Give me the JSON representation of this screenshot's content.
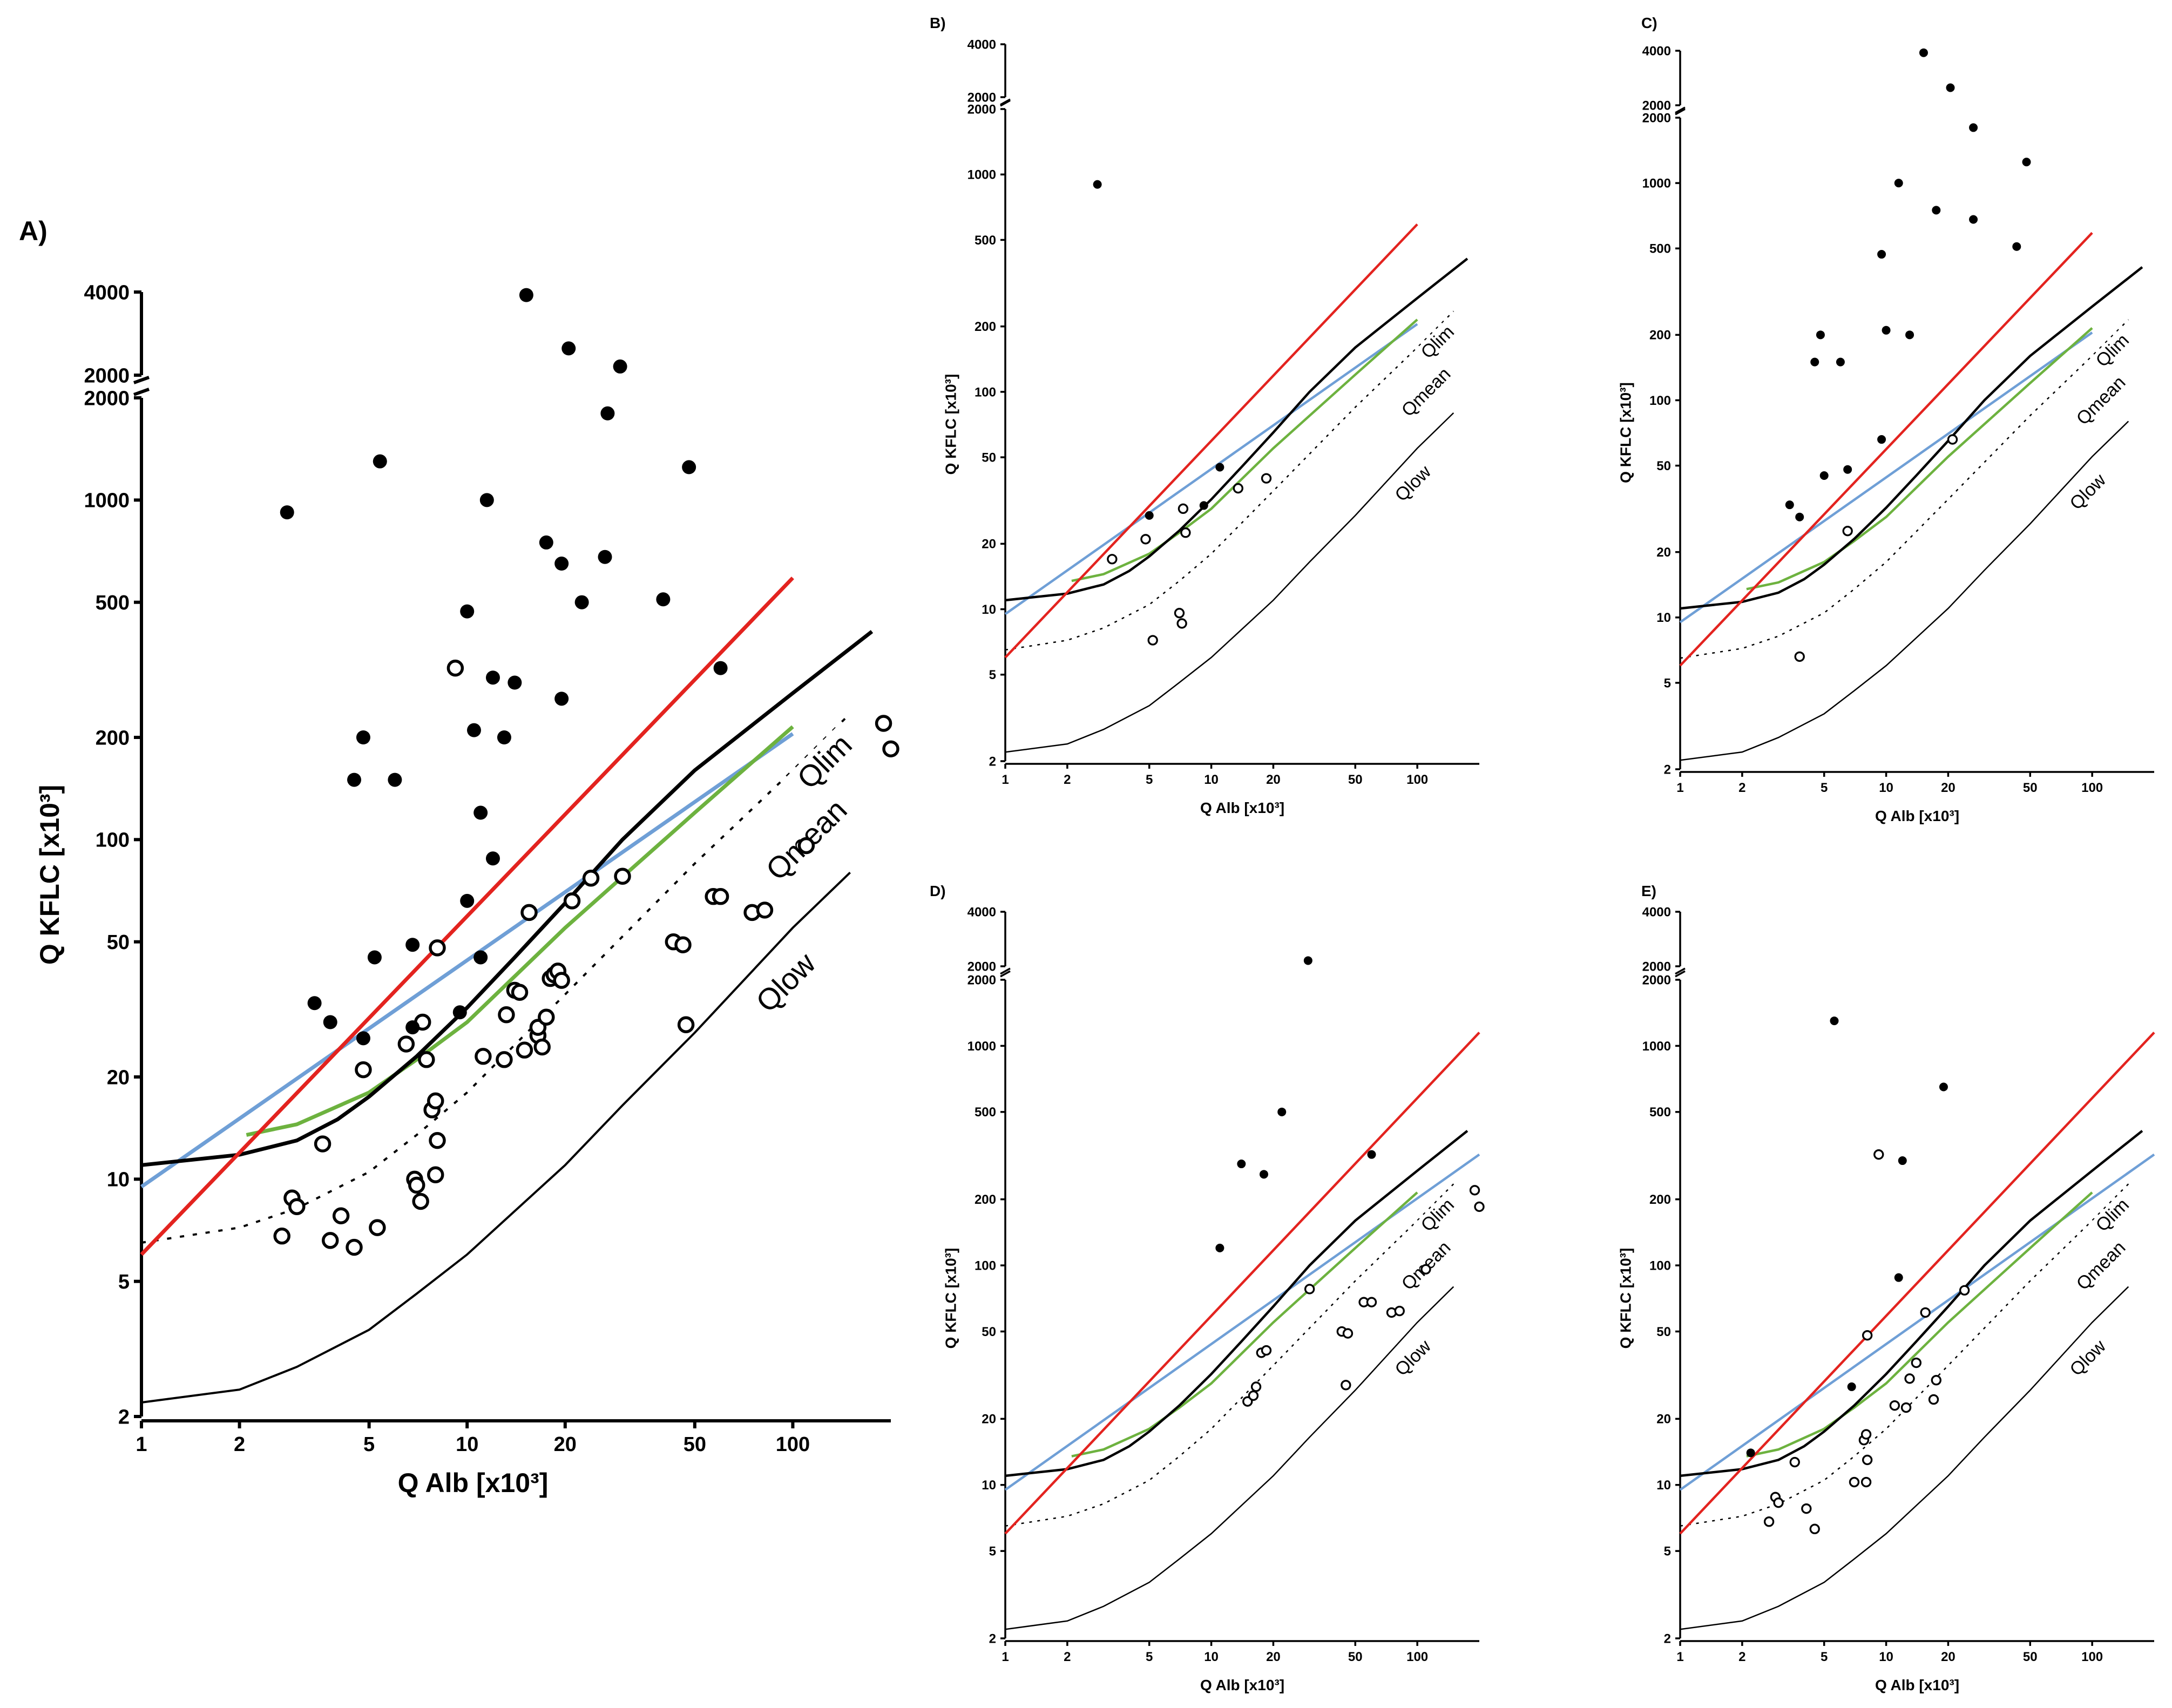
{
  "figure": {
    "colors": {
      "red": "#e3231f",
      "blue": "#6f9fd6",
      "green": "#6db23f",
      "black": "#000000"
    }
  },
  "chart_data": [
    {
      "panel": "A)",
      "type": "scatter",
      "xlabel": "Q Alb [x10³]",
      "ylabel": "Q KFLC [x10³]",
      "xscale": "log",
      "yscale": "log-broken",
      "xlim": [
        1,
        200
      ],
      "ylim_lower": [
        2,
        2000
      ],
      "ylim_upper": [
        2000,
        4000
      ],
      "x_ticks": [
        1,
        2,
        5,
        10,
        20,
        50,
        100
      ],
      "y_ticks_lower": [
        2,
        5,
        10,
        20,
        50,
        100,
        200,
        500,
        1000,
        2000
      ],
      "y_ticks_upper": [
        2000,
        4000
      ],
      "curve_labels": [
        "Qlim",
        "Qmean",
        "Qlow"
      ],
      "filled_points": [
        [
          2.8,
          920
        ],
        [
          5.4,
          1300
        ],
        [
          15.2,
          3900
        ],
        [
          20.5,
          2500
        ],
        [
          29.5,
          2150
        ],
        [
          27,
          1800
        ],
        [
          48,
          1250
        ],
        [
          11.5,
          1000
        ],
        [
          17.5,
          750
        ],
        [
          19.5,
          650
        ],
        [
          26.5,
          680
        ],
        [
          22.5,
          500
        ],
        [
          40,
          510
        ],
        [
          10,
          470
        ],
        [
          4.8,
          200
        ],
        [
          4.5,
          150
        ],
        [
          6,
          150
        ],
        [
          12,
          300
        ],
        [
          14,
          290
        ],
        [
          19.5,
          260
        ],
        [
          13,
          200
        ],
        [
          10.5,
          210
        ],
        [
          11,
          120
        ],
        [
          12,
          88
        ],
        [
          60,
          320
        ],
        [
          10,
          66
        ],
        [
          5.2,
          45
        ],
        [
          6.8,
          49
        ],
        [
          3.4,
          33
        ],
        [
          3.8,
          29
        ],
        [
          4.8,
          26
        ],
        [
          6.8,
          28
        ],
        [
          9.5,
          31
        ],
        [
          11,
          45
        ]
      ],
      "open_points": [
        [
          9.2,
          320
        ],
        [
          2.7,
          6.8
        ],
        [
          2.9,
          8.8
        ],
        [
          3,
          8.3
        ],
        [
          3.6,
          12.7
        ],
        [
          3.8,
          6.6
        ],
        [
          4.1,
          7.8
        ],
        [
          4.5,
          6.3
        ],
        [
          4.8,
          21
        ],
        [
          5.3,
          7.2
        ],
        [
          6.5,
          25
        ],
        [
          6.9,
          10
        ],
        [
          7,
          9.6
        ],
        [
          7.2,
          8.6
        ],
        [
          7.3,
          29
        ],
        [
          7.5,
          22.5
        ],
        [
          7.8,
          16
        ],
        [
          8,
          17
        ],
        [
          8.1,
          13
        ],
        [
          8,
          10.3
        ],
        [
          8.1,
          48
        ],
        [
          11.2,
          23
        ],
        [
          13,
          22.5
        ],
        [
          13.2,
          30.5
        ],
        [
          14,
          36
        ],
        [
          14.5,
          35.5
        ],
        [
          15,
          24
        ],
        [
          15.5,
          61
        ],
        [
          16.5,
          26.5
        ],
        [
          16.5,
          28
        ],
        [
          17,
          24.5
        ],
        [
          17.5,
          30
        ],
        [
          18,
          39
        ],
        [
          18.5,
          40
        ],
        [
          19,
          41
        ],
        [
          19.5,
          38.5
        ],
        [
          21,
          66
        ],
        [
          24,
          77
        ],
        [
          30,
          78
        ],
        [
          43,
          50
        ],
        [
          46,
          49
        ],
        [
          47,
          28.5
        ],
        [
          57,
          68
        ],
        [
          60,
          68
        ],
        [
          75,
          61
        ],
        [
          82,
          62
        ],
        [
          110,
          96
        ],
        [
          190,
          220
        ],
        [
          200,
          185
        ]
      ]
    },
    {
      "panel": "B)",
      "type": "scatter",
      "xlabel": "Q Alb [x10³]",
      "ylabel": "Q KFLC [x10³]",
      "xscale": "log",
      "yscale": "log-broken",
      "xlim": [
        1,
        200
      ],
      "ylim_lower": [
        2,
        2000
      ],
      "ylim_upper": [
        2000,
        4000
      ],
      "x_ticks": [
        1,
        2,
        5,
        10,
        20,
        50,
        100
      ],
      "y_ticks_lower": [
        2,
        5,
        10,
        20,
        50,
        100,
        200,
        500,
        1000,
        2000
      ],
      "y_ticks_upper": [
        2000,
        4000
      ],
      "curve_labels": [
        "Qlim",
        "Qmean",
        "Qlow"
      ],
      "filled_points": [
        [
          2.8,
          900
        ],
        [
          5,
          27
        ],
        [
          9.2,
          30
        ],
        [
          11,
          45
        ]
      ],
      "open_points": [
        [
          3.3,
          17
        ],
        [
          4.8,
          21
        ],
        [
          5.2,
          7.2
        ],
        [
          7,
          9.6
        ],
        [
          7.2,
          8.6
        ],
        [
          7.3,
          29
        ],
        [
          7.5,
          22.5
        ],
        [
          13.5,
          36
        ],
        [
          18.5,
          40
        ]
      ]
    },
    {
      "panel": "C)",
      "type": "scatter",
      "xlabel": "Q Alb [x10³]",
      "ylabel": "Q KFLC [x10³]",
      "xscale": "log",
      "yscale": "log-broken",
      "xlim": [
        1,
        200
      ],
      "ylim_lower": [
        2,
        2000
      ],
      "ylim_upper": [
        2000,
        4000
      ],
      "x_ticks": [
        1,
        2,
        5,
        10,
        20,
        50,
        100
      ],
      "y_ticks_lower": [
        2,
        5,
        10,
        20,
        50,
        100,
        200,
        500,
        1000,
        2000
      ],
      "y_ticks_upper": [
        2000,
        4000
      ],
      "curve_labels": [
        "Qlim",
        "Qmean",
        "Qlow"
      ],
      "filled_points": [
        [
          15.2,
          3900
        ],
        [
          20.5,
          2500
        ],
        [
          26.5,
          1800
        ],
        [
          48,
          1250
        ],
        [
          11.5,
          1000
        ],
        [
          17.5,
          750
        ],
        [
          26.5,
          680
        ],
        [
          43,
          510
        ],
        [
          9.5,
          470
        ],
        [
          10,
          210
        ],
        [
          13,
          200
        ],
        [
          4.8,
          200
        ],
        [
          4.5,
          150
        ],
        [
          6,
          150
        ],
        [
          9.5,
          66
        ],
        [
          5,
          45
        ],
        [
          6.5,
          48
        ],
        [
          3.4,
          33
        ],
        [
          3.8,
          29
        ]
      ],
      "open_points": [
        [
          3.8,
          6.6
        ],
        [
          6.5,
          25
        ],
        [
          21,
          66
        ]
      ]
    },
    {
      "panel": "D)",
      "type": "scatter",
      "xlabel": "Q Alb [x10³]",
      "ylabel": "Q KFLC [x10³]",
      "xscale": "log",
      "yscale": "log-broken",
      "xlim": [
        1,
        200
      ],
      "ylim_lower": [
        2,
        2000
      ],
      "ylim_upper": [
        2000,
        4000
      ],
      "x_ticks": [
        1,
        2,
        5,
        10,
        20,
        50,
        100
      ],
      "y_ticks_lower": [
        2,
        5,
        10,
        20,
        50,
        100,
        200,
        500,
        1000,
        2000
      ],
      "y_ticks_upper": [
        2000,
        4000
      ],
      "curve_labels": [
        "Qlim",
        "Qmean",
        "Qlow"
      ],
      "filled_points": [
        [
          29.5,
          2150
        ],
        [
          22,
          500
        ],
        [
          14,
          290
        ],
        [
          18,
          260
        ],
        [
          11,
          120
        ],
        [
          60,
          320
        ]
      ],
      "open_points": [
        [
          30,
          78
        ],
        [
          15,
          24
        ],
        [
          16,
          25.5
        ],
        [
          16.5,
          28
        ],
        [
          17.5,
          40
        ],
        [
          18.5,
          41
        ],
        [
          43,
          50
        ],
        [
          46,
          49
        ],
        [
          45,
          28.5
        ],
        [
          55,
          68
        ],
        [
          60,
          68
        ],
        [
          75,
          61
        ],
        [
          82,
          62
        ],
        [
          110,
          96
        ],
        [
          190,
          220
        ],
        [
          200,
          185
        ]
      ]
    },
    {
      "panel": "E)",
      "type": "scatter",
      "xlabel": "Q Alb [x10³]",
      "ylabel": "Q KFLC [x10³]",
      "xscale": "log",
      "yscale": "log-broken",
      "xlim": [
        1,
        200
      ],
      "ylim_lower": [
        2,
        2000
      ],
      "ylim_upper": [
        2000,
        4000
      ],
      "x_ticks": [
        1,
        2,
        5,
        10,
        20,
        50,
        100
      ],
      "y_ticks_lower": [
        2,
        5,
        10,
        20,
        50,
        100,
        200,
        500,
        1000,
        2000
      ],
      "y_ticks_upper": [
        2000,
        4000
      ],
      "curve_labels": [
        "Qlim",
        "Qmean",
        "Qlow"
      ],
      "filled_points": [
        [
          5.6,
          1300
        ],
        [
          19,
          650
        ],
        [
          12,
          300
        ],
        [
          11.5,
          88
        ],
        [
          6.8,
          28
        ],
        [
          2.2,
          14
        ]
      ],
      "open_points": [
        [
          9.2,
          320
        ],
        [
          2.7,
          6.8
        ],
        [
          2.9,
          8.8
        ],
        [
          3,
          8.3
        ],
        [
          3.6,
          12.7
        ],
        [
          4.1,
          7.8
        ],
        [
          4.5,
          6.3
        ],
        [
          7,
          10.3
        ],
        [
          7.8,
          16
        ],
        [
          8,
          17
        ],
        [
          8.1,
          13
        ],
        [
          8,
          10.3
        ],
        [
          8.1,
          48
        ],
        [
          11,
          23
        ],
        [
          12.5,
          22.5
        ],
        [
          13,
          30.5
        ],
        [
          14,
          36
        ],
        [
          15.5,
          61
        ],
        [
          17,
          24.5
        ],
        [
          17.5,
          30
        ],
        [
          24,
          77
        ]
      ]
    }
  ]
}
